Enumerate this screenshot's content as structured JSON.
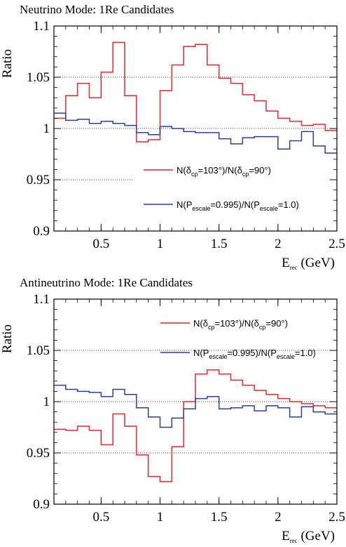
{
  "colors": {
    "red": "#e8262c",
    "blue": "#2a3f9c",
    "axis": "#000000"
  },
  "chart_data": [
    {
      "type": "step",
      "title": "Neutrino Mode: 1Re Candidates",
      "ylabel": "Ratio",
      "xlabel": {
        "main": "E",
        "sub": "rec",
        "unit": " (GeV)"
      },
      "xlim": [
        0.1,
        2.5
      ],
      "ylim": [
        0.9,
        1.1
      ],
      "xticks": [
        "0.5",
        "1",
        "1.5",
        "2",
        "2.5"
      ],
      "yticks": [
        "0.9",
        "0.95",
        "1",
        "1.05",
        "1.1"
      ],
      "reference_lines": [
        0.95,
        1.0,
        1.05
      ],
      "bin_edges": [
        0.1,
        0.2,
        0.3,
        0.4,
        0.5,
        0.6,
        0.7,
        0.8,
        0.9,
        1.0,
        1.1,
        1.2,
        1.3,
        1.4,
        1.5,
        1.6,
        1.7,
        1.8,
        1.9,
        2.0,
        2.1,
        2.2,
        2.3,
        2.4,
        2.5
      ],
      "legend_placement": "bottom-right",
      "series": [
        {
          "name": "N(δcp=103°)/N(δcp=90°)",
          "label_parts": {
            "a": "N(δ",
            "a_sub": "cp",
            "b": "=103°)/N(δ",
            "b_sub": "cp",
            "c": "=90°)"
          },
          "color": "red",
          "values": [
            1.01,
            1.032,
            1.044,
            1.03,
            1.055,
            1.084,
            1.032,
            0.987,
            0.989,
            1.037,
            1.062,
            1.08,
            1.082,
            1.062,
            1.049,
            1.044,
            1.033,
            1.027,
            1.017,
            1.01,
            1.007,
            1.003,
            1.004,
            0.998
          ]
        },
        {
          "name": "N(Pescale=0.995)/N(Pescale=1.0)",
          "label_parts": {
            "a": "N(P",
            "a_sub": "escale",
            "b": "=0.995)/N(P",
            "b_sub": "escale",
            "c": "=1.0)"
          },
          "color": "blue",
          "values": [
            1.015,
            1.008,
            1.009,
            1.005,
            1.007,
            1.005,
            1.003,
            0.996,
            0.994,
            1.002,
            1.0,
            0.997,
            0.996,
            0.996,
            0.99,
            0.985,
            0.991,
            0.992,
            0.992,
            0.98,
            0.988,
            0.997,
            0.983,
            0.976
          ]
        }
      ]
    },
    {
      "type": "step",
      "title": "Antineutrino Mode: 1Re Candidates",
      "ylabel": "Ratio",
      "xlabel": {
        "main": "E",
        "sub": "rec",
        "unit": " (GeV)"
      },
      "xlim": [
        0.1,
        2.5
      ],
      "ylim": [
        0.9,
        1.1
      ],
      "xticks": [
        "0.5",
        "1",
        "1.5",
        "2",
        "2.5"
      ],
      "yticks": [
        "0.9",
        "0.95",
        "1",
        "1.05",
        "1.1"
      ],
      "reference_lines": [
        0.95,
        1.0,
        1.05
      ],
      "bin_edges": [
        0.1,
        0.2,
        0.3,
        0.4,
        0.5,
        0.6,
        0.7,
        0.8,
        0.9,
        1.0,
        1.1,
        1.2,
        1.3,
        1.4,
        1.5,
        1.6,
        1.7,
        1.8,
        1.9,
        2.0,
        2.1,
        2.2,
        2.3,
        2.4,
        2.5
      ],
      "legend_placement": "top-right",
      "series": [
        {
          "name": "N(δcp=103°)/N(δcp=90°)",
          "label_parts": {
            "a": "N(δ",
            "a_sub": "cp",
            "b": "=103°)/N(δ",
            "b_sub": "cp",
            "c": "=90°)"
          },
          "color": "red",
          "values": [
            0.973,
            0.972,
            0.976,
            0.972,
            0.958,
            0.988,
            0.976,
            0.948,
            0.927,
            0.922,
            0.956,
            1.0,
            1.027,
            1.031,
            1.027,
            1.021,
            1.016,
            1.011,
            1.007,
            1.003,
            1.0,
            0.998,
            0.996,
            0.994
          ]
        },
        {
          "name": "N(Pescale=0.995)/N(Pescale=1.0)",
          "label_parts": {
            "a": "N(P",
            "a_sub": "escale",
            "b": "=0.995)/N(P",
            "b_sub": "escale",
            "c": "=1.0)"
          },
          "color": "blue",
          "values": [
            1.016,
            1.012,
            1.01,
            1.009,
            1.005,
            1.012,
            1.007,
            0.994,
            0.985,
            0.975,
            0.984,
            0.993,
            1.003,
            1.005,
            0.993,
            0.994,
            0.996,
            0.991,
            0.996,
            0.994,
            0.985,
            0.995,
            0.99,
            0.988
          ]
        }
      ]
    }
  ]
}
